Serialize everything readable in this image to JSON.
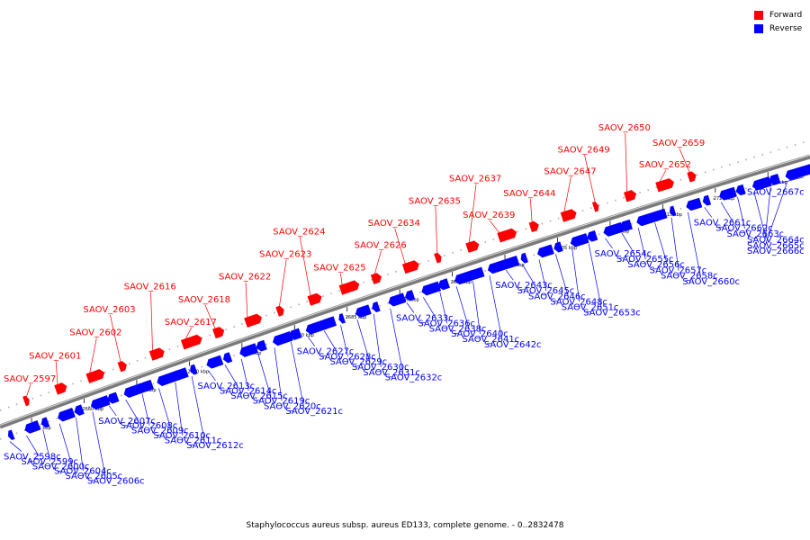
{
  "legend": {
    "forward": {
      "label": "Forward",
      "color": "#ff0000"
    },
    "reverse": {
      "label": "Reverse",
      "color": "#0000ff"
    }
  },
  "caption": "Staphylococcus aureus subsp. aureus ED133, complete genome. - 0..2832478",
  "axis": {
    "unit": "kbp",
    "ticks": [
      2655,
      2660,
      2665,
      2670,
      2675,
      2680,
      2685,
      2690,
      2695,
      2700,
      2705,
      2710,
      2715,
      2720,
      2725
    ]
  },
  "genes": [
    {
      "name": "SAOV_2597",
      "strand": "forward"
    },
    {
      "name": "SAOV_2598c",
      "strand": "reverse"
    },
    {
      "name": "SAOV_2599c",
      "strand": "reverse"
    },
    {
      "name": "SAOV_2600c",
      "strand": "reverse"
    },
    {
      "name": "SAOV_2601",
      "strand": "forward"
    },
    {
      "name": "SAOV_2602",
      "strand": "forward"
    },
    {
      "name": "SAOV_2603",
      "strand": "forward"
    },
    {
      "name": "SAOV_2604c",
      "strand": "reverse"
    },
    {
      "name": "SAOV_2605c",
      "strand": "reverse"
    },
    {
      "name": "SAOV_2606c",
      "strand": "reverse"
    },
    {
      "name": "SAOV_2607c",
      "strand": "reverse"
    },
    {
      "name": "SAOV_2608c",
      "strand": "reverse"
    },
    {
      "name": "SAOV_2609c",
      "strand": "reverse"
    },
    {
      "name": "SAOV_2610c",
      "strand": "reverse"
    },
    {
      "name": "SAOV_2611c",
      "strand": "reverse"
    },
    {
      "name": "SAOV_2612c",
      "strand": "reverse"
    },
    {
      "name": "SAOV_2613c",
      "strand": "reverse"
    },
    {
      "name": "SAOV_2614c",
      "strand": "reverse"
    },
    {
      "name": "SAOV_2615c",
      "strand": "reverse"
    },
    {
      "name": "SAOV_2616",
      "strand": "forward"
    },
    {
      "name": "SAOV_2617",
      "strand": "forward"
    },
    {
      "name": "SAOV_2618",
      "strand": "forward"
    },
    {
      "name": "SAOV_2619c",
      "strand": "reverse"
    },
    {
      "name": "SAOV_2620c",
      "strand": "reverse"
    },
    {
      "name": "SAOV_2621c",
      "strand": "reverse"
    },
    {
      "name": "SAOV_2622",
      "strand": "forward"
    },
    {
      "name": "SAOV_2623",
      "strand": "forward"
    },
    {
      "name": "SAOV_2624",
      "strand": "forward"
    },
    {
      "name": "SAOV_2625",
      "strand": "forward"
    },
    {
      "name": "SAOV_2626",
      "strand": "forward"
    },
    {
      "name": "SAOV_2627c",
      "strand": "reverse"
    },
    {
      "name": "SAOV_2628c",
      "strand": "reverse"
    },
    {
      "name": "SAOV_2629c",
      "strand": "reverse"
    },
    {
      "name": "SAOV_2630c",
      "strand": "reverse"
    },
    {
      "name": "SAOV_2631c",
      "strand": "reverse"
    },
    {
      "name": "SAOV_2632c",
      "strand": "reverse"
    },
    {
      "name": "SAOV_2633c",
      "strand": "reverse"
    },
    {
      "name": "SAOV_2634",
      "strand": "forward"
    },
    {
      "name": "SAOV_2635",
      "strand": "forward"
    },
    {
      "name": "SAOV_2636c",
      "strand": "reverse"
    },
    {
      "name": "SAOV_2637",
      "strand": "forward"
    },
    {
      "name": "SAOV_2638c",
      "strand": "reverse"
    },
    {
      "name": "SAOV_2639",
      "strand": "forward"
    },
    {
      "name": "SAOV_2640c",
      "strand": "reverse"
    },
    {
      "name": "SAOV_2641c",
      "strand": "reverse"
    },
    {
      "name": "SAOV_2642c",
      "strand": "reverse"
    },
    {
      "name": "SAOV_2643c",
      "strand": "reverse"
    },
    {
      "name": "SAOV_2644",
      "strand": "forward"
    },
    {
      "name": "SAOV_2645c",
      "strand": "reverse"
    },
    {
      "name": "SAOV_2646c",
      "strand": "reverse"
    },
    {
      "name": "SAOV_2647",
      "strand": "forward"
    },
    {
      "name": "SAOV_2648c",
      "strand": "reverse"
    },
    {
      "name": "SAOV_2649",
      "strand": "forward"
    },
    {
      "name": "SAOV_2650",
      "strand": "forward"
    },
    {
      "name": "SAOV_2651c",
      "strand": "reverse"
    },
    {
      "name": "SAOV_2652",
      "strand": "forward"
    },
    {
      "name": "SAOV_2653c",
      "strand": "reverse"
    },
    {
      "name": "SAOV_2654c",
      "strand": "reverse"
    },
    {
      "name": "SAOV_2655c",
      "strand": "reverse"
    },
    {
      "name": "SAOV_2656c",
      "strand": "reverse"
    },
    {
      "name": "SAOV_2657c",
      "strand": "reverse"
    },
    {
      "name": "SAOV_2658c",
      "strand": "reverse"
    },
    {
      "name": "SAOV_2659",
      "strand": "forward"
    },
    {
      "name": "SAOV_2660c",
      "strand": "reverse"
    },
    {
      "name": "SAOV_2661c",
      "strand": "reverse"
    },
    {
      "name": "SAOV_2662c",
      "strand": "reverse"
    },
    {
      "name": "SAOV_2663c",
      "strand": "reverse"
    },
    {
      "name": "SAOV_2664c",
      "strand": "reverse"
    },
    {
      "name": "SAOV_2665c",
      "strand": "reverse"
    },
    {
      "name": "SAOV_2666c",
      "strand": "reverse"
    },
    {
      "name": "SAOV_2667c",
      "strand": "reverse"
    }
  ]
}
